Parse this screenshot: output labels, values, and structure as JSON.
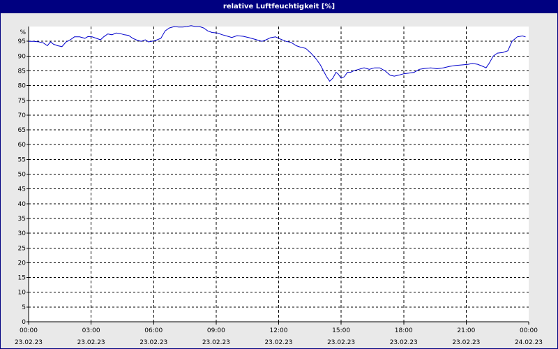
{
  "window": {
    "title": "relative Luftfeuchtigkeit [%]"
  },
  "colors": {
    "series": "#0000cc",
    "grid": "#000000",
    "title_bar": "#000080",
    "plot_background": "#ffffff",
    "page_background": "#e9e9e9"
  },
  "chart_data": {
    "type": "line",
    "title": "relative Luftfeuchtigkeit [%]",
    "ylabel": "",
    "xlabel": "",
    "y_unit_label": "%",
    "ylim": [
      0,
      100
    ],
    "y_ticks": [
      0,
      5,
      10,
      15,
      20,
      25,
      30,
      35,
      40,
      45,
      50,
      55,
      60,
      65,
      70,
      75,
      80,
      85,
      90,
      95
    ],
    "x_range_hours": [
      0,
      24
    ],
    "x_ticks": [
      {
        "h": 0,
        "time": "00:00",
        "date": "23.02.23"
      },
      {
        "h": 3,
        "time": "03:00",
        "date": "23.02.23"
      },
      {
        "h": 6,
        "time": "06:00",
        "date": "23.02.23"
      },
      {
        "h": 9,
        "time": "09:00",
        "date": "23.02.23"
      },
      {
        "h": 12,
        "time": "12:00",
        "date": "23.02.23"
      },
      {
        "h": 15,
        "time": "15:00",
        "date": "23.02.23"
      },
      {
        "h": 18,
        "time": "18:00",
        "date": "23.02.23"
      },
      {
        "h": 21,
        "time": "21:00",
        "date": "23.02.23"
      },
      {
        "h": 24,
        "time": "00:00",
        "date": "24.02.23"
      }
    ],
    "grid": true,
    "series": [
      {
        "x": [
          0,
          0.25,
          0.5,
          0.7,
          0.9,
          1.05,
          1.2,
          1.4,
          1.6,
          1.8,
          2.0,
          2.2,
          2.45,
          2.7,
          2.85,
          3.05,
          3.25,
          3.45,
          3.6,
          3.8,
          4.0,
          4.2,
          4.4,
          4.6,
          4.8,
          5.0,
          5.2,
          5.4,
          5.6,
          5.75,
          5.9,
          6.1,
          6.35,
          6.55,
          6.75,
          7.0,
          7.2,
          7.4,
          7.6,
          7.8,
          8.0,
          8.2,
          8.4,
          8.6,
          8.8,
          9.05,
          9.3,
          9.5,
          9.75,
          10.0,
          10.3,
          10.6,
          10.9,
          11.2,
          11.4,
          11.6,
          11.85,
          12.1,
          12.35,
          12.6,
          12.85,
          13.05,
          13.3,
          13.55,
          13.8,
          14.0,
          14.15,
          14.3,
          14.45,
          14.6,
          14.75,
          14.85,
          15.0,
          15.15,
          15.3,
          15.45,
          15.6,
          15.85,
          16.1,
          16.35,
          16.6,
          16.85,
          17.1,
          17.35,
          17.55,
          17.8,
          18.0,
          18.25,
          18.5,
          18.75,
          19.0,
          19.3,
          19.6,
          19.9,
          20.2,
          20.5,
          20.8,
          21.1,
          21.3,
          21.55,
          21.8,
          21.95,
          22.1,
          22.3,
          22.5,
          22.75,
          23.0,
          23.2,
          23.45,
          23.7,
          23.85
        ],
        "values": [
          95.0,
          95.0,
          94.8,
          94.5,
          93.5,
          94.8,
          94.0,
          93.5,
          93.2,
          94.8,
          95.5,
          96.5,
          96.5,
          96.0,
          96.6,
          96.5,
          96.0,
          95.5,
          96.5,
          97.5,
          97.2,
          97.8,
          97.6,
          97.2,
          97.0,
          96.0,
          95.4,
          95.0,
          95.5,
          94.8,
          95.0,
          95.3,
          96.0,
          98.5,
          99.5,
          100.0,
          99.8,
          99.8,
          100.0,
          100.3,
          100.0,
          100.0,
          99.5,
          98.5,
          98.0,
          97.8,
          97.2,
          96.8,
          96.3,
          96.9,
          96.7,
          96.2,
          95.6,
          95.0,
          95.5,
          96.2,
          96.5,
          95.7,
          95.0,
          94.6,
          93.5,
          93.0,
          92.6,
          91.0,
          89.0,
          87.0,
          85.0,
          83.0,
          81.5,
          82.5,
          84.5,
          84.0,
          82.5,
          83.0,
          84.5,
          84.5,
          85.0,
          85.5,
          86.0,
          85.5,
          86.0,
          86.0,
          85.0,
          83.5,
          83.2,
          83.6,
          84.0,
          84.2,
          84.5,
          85.5,
          85.8,
          86.0,
          85.7,
          86.0,
          86.5,
          86.8,
          87.0,
          87.2,
          87.5,
          87.2,
          86.5,
          86.0,
          87.5,
          90.0,
          91.0,
          91.2,
          91.8,
          95.0,
          96.5,
          96.8,
          96.5
        ],
        "color": "#0000cc"
      }
    ]
  }
}
